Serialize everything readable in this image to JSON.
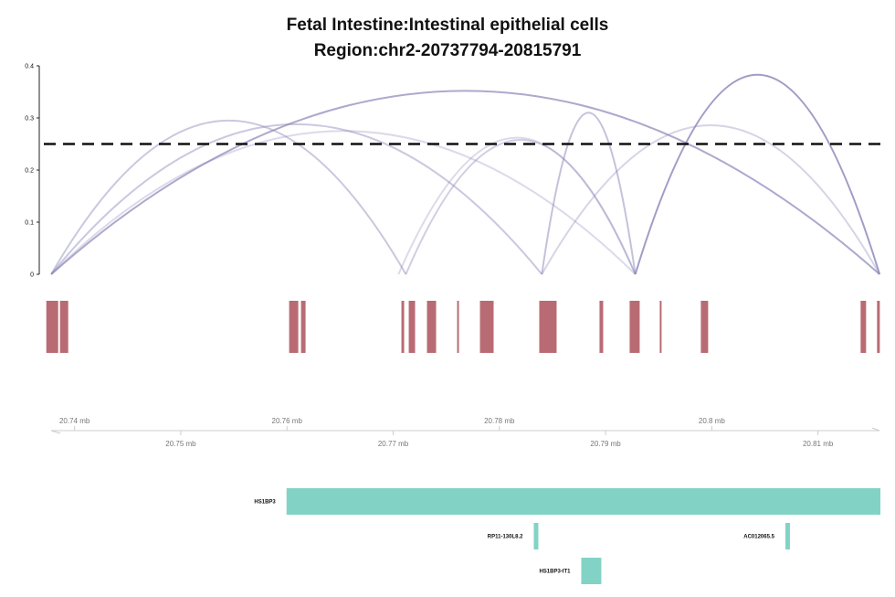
{
  "title": {
    "line1": "Fetal Intestine:Intestinal epithelial cells",
    "line2": "Region:chr2-20737794-20815791"
  },
  "colors": {
    "arc": "#8a85b8",
    "peak": "#b5636d",
    "gene": "#82d3c6",
    "threshold": "#111111",
    "axis": "#cccccc"
  },
  "chart_data": [
    {
      "type": "line",
      "subtype": "arc",
      "title": "Fetal Intestine:Intestinal epithelial cells / Region:chr2-20737794-20815791",
      "xlabel": "",
      "ylabel": "",
      "xlim_mb": [
        20.737794,
        20.815791
      ],
      "ylim": [
        0,
        0.4
      ],
      "yticks": [
        0,
        0.1,
        0.2,
        0.3,
        0.4
      ],
      "ytick_labels": [
        "0",
        "0.1",
        "0.2",
        "0.3",
        "0.4"
      ],
      "threshold": 0.25,
      "grid": false,
      "arcs": [
        {
          "start_mb": 20.7378,
          "end_mb": 20.7712,
          "score": 0.295,
          "opacity": 0.45
        },
        {
          "start_mb": 20.7378,
          "end_mb": 20.784,
          "score": 0.288,
          "opacity": 0.45
        },
        {
          "start_mb": 20.7378,
          "end_mb": 20.7928,
          "score": 0.275,
          "opacity": 0.3
        },
        {
          "start_mb": 20.7378,
          "end_mb": 20.8158,
          "score": 0.352,
          "opacity": 0.7
        },
        {
          "start_mb": 20.7705,
          "end_mb": 20.7928,
          "score": 0.262,
          "opacity": 0.3
        },
        {
          "start_mb": 20.7712,
          "end_mb": 20.7928,
          "score": 0.258,
          "opacity": 0.4
        },
        {
          "start_mb": 20.784,
          "end_mb": 20.7928,
          "score": 0.31,
          "opacity": 0.5
        },
        {
          "start_mb": 20.784,
          "end_mb": 20.8158,
          "score": 0.286,
          "opacity": 0.35
        },
        {
          "start_mb": 20.7928,
          "end_mb": 20.8158,
          "score": 0.383,
          "opacity": 0.8
        }
      ]
    },
    {
      "type": "bar",
      "subtype": "peaks",
      "xlim_mb": [
        20.737794,
        20.815791
      ],
      "peaks_mb": [
        [
          20.737339,
          20.738456
        ],
        [
          20.738628,
          20.739401
        ],
        [
          20.760204,
          20.761063
        ],
        [
          20.761321,
          20.761751
        ],
        [
          20.770777,
          20.771035
        ],
        [
          20.771465,
          20.772066
        ],
        [
          20.773184,
          20.774043
        ],
        [
          20.776021,
          20.776193
        ],
        [
          20.77817,
          20.779459
        ],
        [
          20.783756,
          20.785389
        ],
        [
          20.789429,
          20.789773
        ],
        [
          20.792266,
          20.793211
        ],
        [
          20.795102,
          20.795274
        ],
        [
          20.798971,
          20.799659
        ],
        [
          20.814015,
          20.814531
        ],
        [
          20.815563,
          20.815821
        ]
      ]
    },
    {
      "type": "table",
      "subtype": "genomic-axis",
      "unit": "mb",
      "top_ticks": [
        "20.74 mb",
        "20.76 mb",
        "20.78 mb",
        "20.8 mb"
      ],
      "top_tick_values": [
        20.74,
        20.76,
        20.78,
        20.8
      ],
      "bottom_ticks": [
        "20.75 mb",
        "20.77 mb",
        "20.79 mb",
        "20.81 mb"
      ],
      "bottom_tick_values": [
        20.75,
        20.77,
        20.79,
        20.81
      ]
    },
    {
      "type": "bar",
      "subtype": "genes",
      "genes": [
        {
          "name": "HS1BP3",
          "start_mb": 20.75996,
          "end_mb": 20.81588,
          "row": 0
        },
        {
          "name": "RP11-130L8.2",
          "start_mb": 20.78324,
          "end_mb": 20.78367,
          "row": 1
        },
        {
          "name": "AC012065.5",
          "start_mb": 20.80693,
          "end_mb": 20.80727,
          "row": 1
        },
        {
          "name": "HS1BP3-IT1",
          "start_mb": 20.78771,
          "end_mb": 20.7896,
          "row": 2
        }
      ]
    }
  ]
}
